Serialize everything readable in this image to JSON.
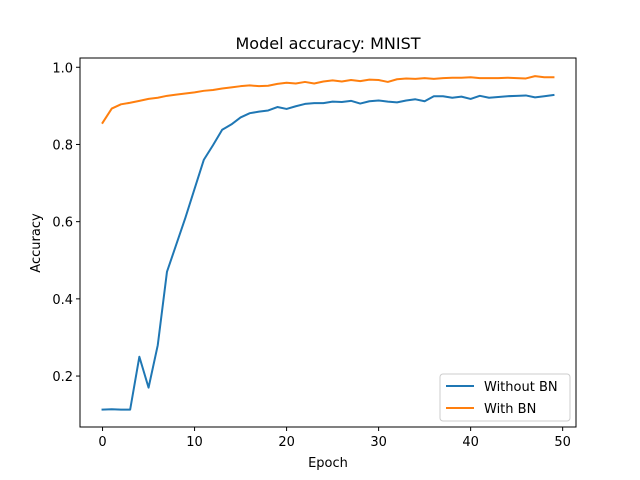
{
  "chart_data": {
    "type": "line",
    "title": "Model accuracy: MNIST",
    "xlabel": "Epoch",
    "ylabel": "Accuracy",
    "xlim": [
      -2.45,
      51.45
    ],
    "ylim": [
      0.068,
      1.024
    ],
    "xticks": [
      0,
      10,
      20,
      30,
      40,
      50
    ],
    "yticks": [
      0.2,
      0.4,
      0.6,
      0.8,
      1.0
    ],
    "ytick_labels": [
      "0.2",
      "0.4",
      "0.6",
      "0.8",
      "1.0"
    ],
    "grid": false,
    "legend_position": "lower-right",
    "x": [
      0,
      1,
      2,
      3,
      4,
      5,
      6,
      7,
      8,
      9,
      10,
      11,
      12,
      13,
      14,
      15,
      16,
      17,
      18,
      19,
      20,
      21,
      22,
      23,
      24,
      25,
      26,
      27,
      28,
      29,
      30,
      31,
      32,
      33,
      34,
      35,
      36,
      37,
      38,
      39,
      40,
      41,
      42,
      43,
      44,
      45,
      46,
      47,
      48,
      49
    ],
    "series": [
      {
        "name": "Without BN",
        "color": "#1f77b4",
        "values": [
          0.113,
          0.114,
          0.113,
          0.113,
          0.25,
          0.17,
          0.28,
          0.47,
          0.54,
          0.61,
          0.685,
          0.76,
          0.798,
          0.838,
          0.852,
          0.87,
          0.881,
          0.885,
          0.888,
          0.897,
          0.892,
          0.899,
          0.905,
          0.907,
          0.907,
          0.911,
          0.91,
          0.913,
          0.906,
          0.912,
          0.914,
          0.911,
          0.909,
          0.914,
          0.917,
          0.912,
          0.925,
          0.925,
          0.921,
          0.924,
          0.918,
          0.926,
          0.921,
          0.923,
          0.925,
          0.926,
          0.927,
          0.922,
          0.925,
          0.928
        ]
      },
      {
        "name": "With BN",
        "color": "#ff7f0e",
        "values": [
          0.856,
          0.893,
          0.904,
          0.908,
          0.913,
          0.918,
          0.921,
          0.926,
          0.929,
          0.932,
          0.935,
          0.939,
          0.941,
          0.945,
          0.948,
          0.951,
          0.953,
          0.951,
          0.952,
          0.957,
          0.96,
          0.958,
          0.962,
          0.958,
          0.963,
          0.966,
          0.963,
          0.967,
          0.964,
          0.968,
          0.967,
          0.962,
          0.969,
          0.971,
          0.97,
          0.972,
          0.97,
          0.972,
          0.973,
          0.973,
          0.974,
          0.972,
          0.972,
          0.972,
          0.973,
          0.972,
          0.971,
          0.977,
          0.974,
          0.974
        ]
      }
    ]
  }
}
